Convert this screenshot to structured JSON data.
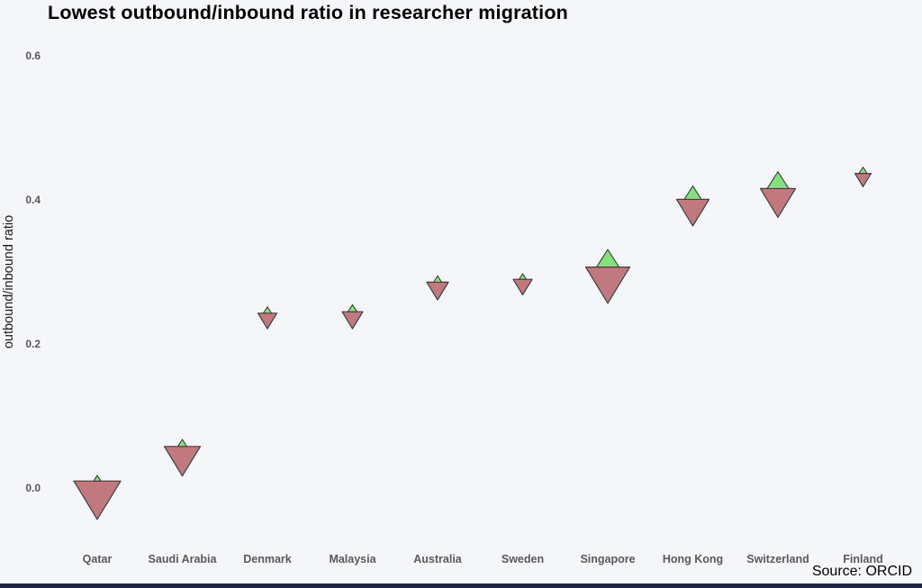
{
  "title": "Lowest outbound/inbound ratio in researcher migration",
  "source_note": "Source: ORCID",
  "colors": {
    "background": "#f5f6fa",
    "marker_down_fill": "#c1797f",
    "marker_up_fill": "#86e07d",
    "marker_stroke": "#3f3f3f",
    "footer_bar": "#1f2742",
    "axis_label_color": "#595959",
    "title_color": "#000000"
  },
  "chart_data": {
    "type": "scatter",
    "title": "Lowest outbound/inbound ratio in researcher migration",
    "xlabel": "",
    "ylabel": "outbound/inbound ratio",
    "categories": [
      "Qatar",
      "Saudi Arabia",
      "Denmark",
      "Malaysia",
      "Australia",
      "Sweden",
      "Singapore",
      "Hong Kong",
      "Switzerland",
      "Finland"
    ],
    "values": [
      0.011,
      0.059,
      0.244,
      0.246,
      0.287,
      0.291,
      0.308,
      0.402,
      0.417,
      0.438
    ],
    "marker_down": {
      "meaning": "outbound flow (red down-triangle, size proportional to flow)",
      "symbol": "triangle-down",
      "color": "#c1797f",
      "sizes": [
        52,
        40,
        21,
        23,
        24,
        21,
        49,
        36,
        39,
        18
      ]
    },
    "marker_up": {
      "meaning": "inbound flow (green up-triangle, size proportional to flow)",
      "symbol": "triangle-up",
      "color": "#86e07d",
      "sizes": [
        8,
        10,
        9,
        10,
        9,
        8,
        25,
        19,
        24,
        9
      ]
    },
    "yticks": [
      "0.0",
      "0.2",
      "0.4",
      "0.6"
    ],
    "ylim": [
      -0.08,
      0.63
    ],
    "grid": false,
    "legend": false,
    "annotation": "Source: ORCID"
  }
}
